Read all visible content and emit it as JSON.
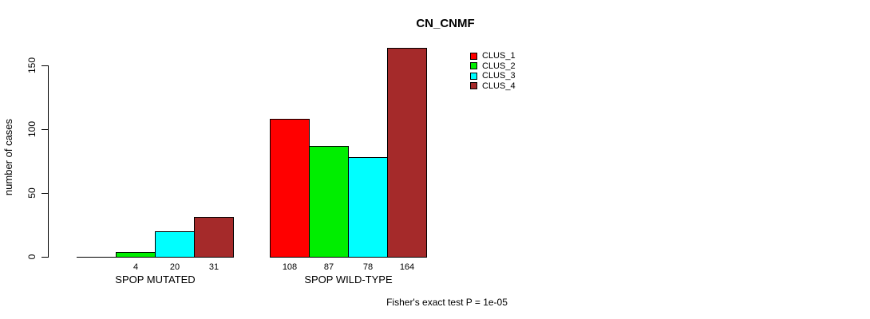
{
  "title": "CN_CNMF",
  "chart_data": {
    "type": "bar",
    "title": "CN_CNMF",
    "xlabel": "",
    "ylabel": "number of cases",
    "yticks": [
      0,
      50,
      100,
      150
    ],
    "ylim": [
      0,
      170
    ],
    "grid": false,
    "legend_position": "top-right",
    "series": [
      {
        "name": "CLUS_1",
        "color": "#FF0000"
      },
      {
        "name": "CLUS_2",
        "color": "#00EE00"
      },
      {
        "name": "CLUS_3",
        "color": "#00FFFF"
      },
      {
        "name": "CLUS_4",
        "color": "#A52A2A"
      }
    ],
    "groups": [
      {
        "label": "SPOP MUTATED",
        "values": [
          0,
          4,
          20,
          31
        ],
        "value_labels": [
          "",
          "4",
          "20",
          "31"
        ]
      },
      {
        "label": "SPOP WILD-TYPE",
        "values": [
          108,
          87,
          78,
          164
        ],
        "value_labels": [
          "108",
          "87",
          "78",
          "164"
        ]
      }
    ],
    "annotation": "Fisher's exact test P = 1e-05"
  },
  "colors": {
    "background": "#FFFFFF",
    "axis": "#000000",
    "bar_border": "#000000",
    "text": "#000000"
  }
}
